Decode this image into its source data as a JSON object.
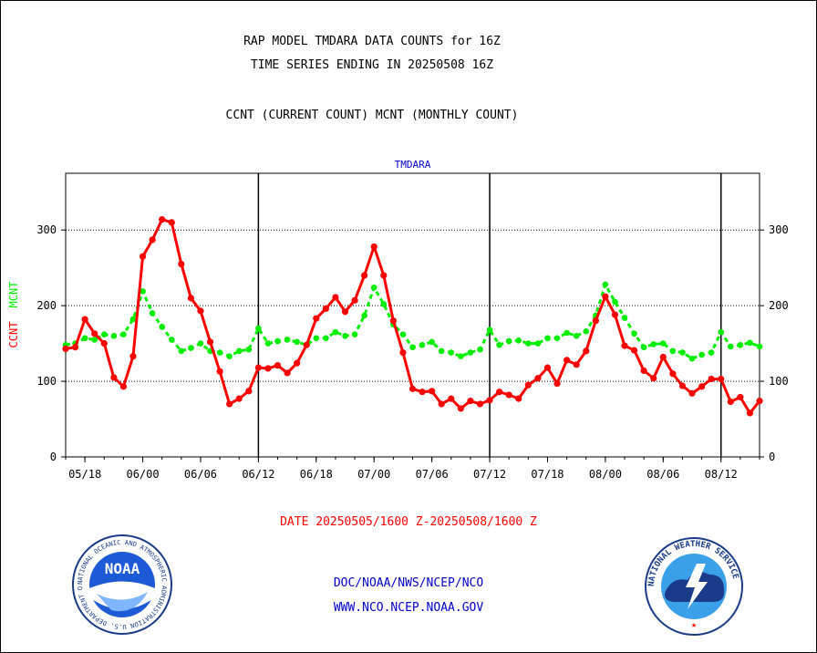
{
  "header": {
    "title_line1": "RAP MODEL TMDARA DATA COUNTS for 16Z",
    "title_line2": "TIME SERIES ENDING IN 20250508 16Z",
    "subtitle": "CCNT (CURRENT COUNT) MCNT (MONTHLY COUNT)"
  },
  "footer": {
    "date_range": "DATE 20250505/1600 Z-20250508/1600 Z",
    "org_line": "DOC/NOAA/NWS/NCEP/NCO",
    "url_line": "WWW.NCO.NCEP.NOAA.GOV"
  },
  "logos": {
    "noaa_label": "NOAA",
    "noaa_ring_text": "NATIONAL OCEANIC AND ATMOSPHERIC ADMINISTRATION U.S. DEPARTMENT OF COMMERCE",
    "nws_ring_text": "NATIONAL WEATHER SERVICE"
  },
  "colors": {
    "ccnt": "#ff0000",
    "mcnt": "#00ee00",
    "plot_title": "#0000cc",
    "footer_links": "#0000cc",
    "date_text": "#ff0000"
  },
  "chart_data": {
    "type": "line",
    "title": "TMDARA",
    "ylabel_left": [
      "CCNT",
      "MCNT"
    ],
    "ylim": [
      0,
      375
    ],
    "yticks": [
      0,
      100,
      200,
      300
    ],
    "xticks": [
      "05/18",
      "06/00",
      "06/06",
      "06/12",
      "06/18",
      "07/00",
      "07/06",
      "07/12",
      "07/18",
      "08/00",
      "08/06",
      "08/12"
    ],
    "x_range_hours": [
      "05/16",
      "08/16"
    ],
    "day_boundaries": [
      "06/12",
      "07/12",
      "08/12"
    ],
    "grid": "horizontal dotted at 100, 200, 300",
    "series": [
      {
        "name": "CCNT",
        "color": "#ff0000",
        "values": [
          143,
          145,
          182,
          163,
          150,
          105,
          93,
          133,
          265,
          287,
          314,
          310,
          255,
          210,
          193,
          152,
          113,
          70,
          77,
          87,
          118,
          117,
          121,
          111,
          124,
          148,
          183,
          196,
          211,
          192,
          207,
          240,
          278,
          240,
          180,
          138,
          90,
          86,
          87,
          70,
          77,
          64,
          74,
          70,
          75,
          86,
          82,
          77,
          95,
          104,
          118,
          97,
          128,
          122,
          140,
          180,
          212,
          188,
          147,
          141,
          114,
          104,
          132,
          110,
          94,
          84,
          93,
          103,
          103,
          73,
          79,
          58,
          74
        ]
      },
      {
        "name": "MCNT",
        "color": "#00ee00",
        "values": [
          148,
          150,
          157,
          155,
          162,
          160,
          162,
          182,
          219,
          190,
          172,
          155,
          140,
          144,
          150,
          140,
          138,
          133,
          140,
          142,
          170,
          150,
          153,
          155,
          152,
          148,
          157,
          157,
          165,
          160,
          162,
          187,
          224,
          202,
          175,
          162,
          145,
          148,
          152,
          140,
          138,
          133,
          138,
          142,
          168,
          148,
          153,
          154,
          150,
          150,
          157,
          157,
          164,
          160,
          166,
          187,
          228,
          205,
          184,
          163,
          145,
          149,
          150,
          140,
          138,
          130,
          135,
          138,
          165,
          146,
          148,
          151,
          146
        ]
      }
    ]
  }
}
